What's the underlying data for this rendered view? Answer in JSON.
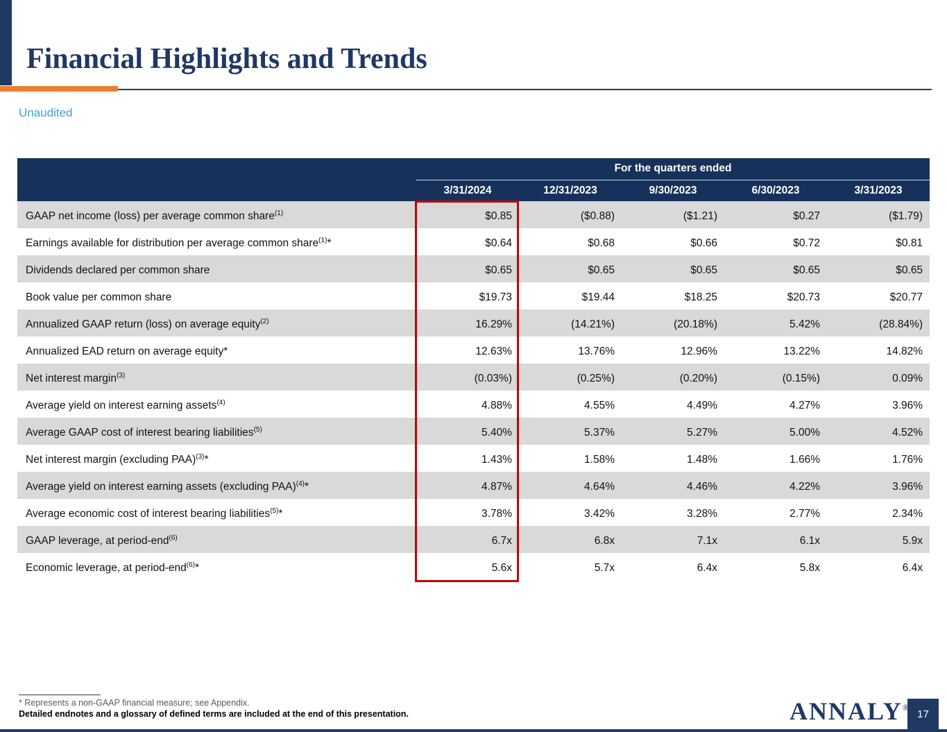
{
  "colors": {
    "navy": "#1F3864",
    "header_navy": "#16325B",
    "orange": "#ED7D31",
    "light_blue": "#41A0D8",
    "row_gray": "#D9D9D9",
    "highlight_red": "#C00000",
    "text_dark": "#111111",
    "footnote_gray": "#595959"
  },
  "slide": {
    "title": "Financial Highlights and Trends",
    "subtitle": "Unaudited",
    "page_number": "17",
    "logo_text": "ANNALY",
    "logo_registered": "®"
  },
  "table": {
    "group_header": "For the quarters ended",
    "columns": [
      "3/31/2024",
      "12/31/2023",
      "9/30/2023",
      "6/30/2023",
      "3/31/2023"
    ],
    "rows": [
      {
        "label": "GAAP net income (loss) per average common share",
        "sup": "(1)",
        "star": "",
        "values": [
          "$0.85",
          "($0.88)",
          "($1.21)",
          "$0.27",
          "($1.79)"
        ]
      },
      {
        "label": "Earnings available for distribution per average common share",
        "sup": "(1)",
        "star": "*",
        "values": [
          "$0.64",
          "$0.68",
          "$0.66",
          "$0.72",
          "$0.81"
        ]
      },
      {
        "label": "Dividends declared per common share",
        "sup": "",
        "star": "",
        "values": [
          "$0.65",
          "$0.65",
          "$0.65",
          "$0.65",
          "$0.65"
        ]
      },
      {
        "label": "Book value per common share",
        "sup": "",
        "star": "",
        "values": [
          "$19.73",
          "$19.44",
          "$18.25",
          "$20.73",
          "$20.77"
        ]
      },
      {
        "label": "Annualized GAAP return (loss) on average equity",
        "sup": "(2)",
        "star": "",
        "values": [
          "16.29%",
          "(14.21%)",
          "(20.18%)",
          "5.42%",
          "(28.84%)"
        ]
      },
      {
        "label": "Annualized EAD return on average equity",
        "sup": "",
        "star": "*",
        "values": [
          "12.63%",
          "13.76%",
          "12.96%",
          "13.22%",
          "14.82%"
        ]
      },
      {
        "label": "Net interest margin",
        "sup": "(3)",
        "star": "",
        "values": [
          "(0.03%)",
          "(0.25%)",
          "(0.20%)",
          "(0.15%)",
          "0.09%"
        ]
      },
      {
        "label": "Average yield on interest earning assets",
        "sup": "(4)",
        "star": "",
        "values": [
          "4.88%",
          "4.55%",
          "4.49%",
          "4.27%",
          "3.96%"
        ]
      },
      {
        "label": "Average GAAP cost of interest bearing liabilities",
        "sup": "(5)",
        "star": "",
        "values": [
          "5.40%",
          "5.37%",
          "5.27%",
          "5.00%",
          "4.52%"
        ]
      },
      {
        "label": "Net interest margin (excluding PAA)",
        "sup": "(3)",
        "star": "*",
        "values": [
          "1.43%",
          "1.58%",
          "1.48%",
          "1.66%",
          "1.76%"
        ]
      },
      {
        "label": "Average yield on interest earning assets (excluding PAA)",
        "sup": "(4)",
        "star": "*",
        "values": [
          "4.87%",
          "4.64%",
          "4.46%",
          "4.22%",
          "3.96%"
        ]
      },
      {
        "label": "Average economic cost of interest bearing liabilities",
        "sup": "(5)",
        "star": "*",
        "values": [
          "3.78%",
          "3.42%",
          "3.28%",
          "2.77%",
          "2.34%"
        ]
      },
      {
        "label": "GAAP leverage, at period-end",
        "sup": "(6)",
        "star": "",
        "values": [
          "6.7x",
          "6.8x",
          "7.1x",
          "6.1x",
          "5.9x"
        ]
      },
      {
        "label": "Economic leverage, at period-end",
        "sup": "(6)",
        "star": "*",
        "values": [
          "5.6x",
          "5.7x",
          "6.4x",
          "5.8x",
          "6.4x"
        ]
      }
    ]
  },
  "footnotes": {
    "line1": "* Represents a non-GAAP financial measure; see Appendix.",
    "line2": "Detailed endnotes and a glossary of defined terms are included at the end of this presentation."
  }
}
